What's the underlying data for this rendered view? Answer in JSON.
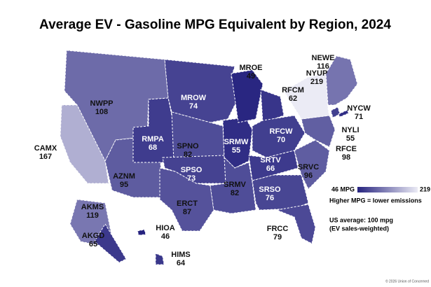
{
  "title": "Average EV - Gasoline MPG Equivalent by Region, 2024",
  "regions": [
    {
      "name": "NWPP",
      "value": 108
    },
    {
      "name": "CAMX",
      "value": 167
    },
    {
      "name": "AZNM",
      "value": 95
    },
    {
      "name": "RMPA",
      "value": 68
    },
    {
      "name": "MROW",
      "value": 74
    },
    {
      "name": "SPNO",
      "value": 82
    },
    {
      "name": "SPSO",
      "value": 73
    },
    {
      "name": "ERCT",
      "value": 87
    },
    {
      "name": "SRMW",
      "value": 55
    },
    {
      "name": "SRMV",
      "value": 82
    },
    {
      "name": "MROE",
      "value": 49
    },
    {
      "name": "RFCM",
      "value": 62
    },
    {
      "name": "RFCW",
      "value": 70
    },
    {
      "name": "SRTV",
      "value": 66
    },
    {
      "name": "SRSO",
      "value": 76
    },
    {
      "name": "FRCC",
      "value": 79
    },
    {
      "name": "SRVC",
      "value": 96
    },
    {
      "name": "RFCE",
      "value": 98
    },
    {
      "name": "NYUP",
      "value": 219
    },
    {
      "name": "NEWE",
      "value": 116
    },
    {
      "name": "NYCW",
      "value": 71
    },
    {
      "name": "NYLI",
      "value": 55
    },
    {
      "name": "AKMS",
      "value": 119
    },
    {
      "name": "AKGD",
      "value": 65
    },
    {
      "name": "HIOA",
      "value": 46
    },
    {
      "name": "HIMS",
      "value": 64
    }
  ],
  "legend": {
    "min": {
      "value": 46,
      "label": "46 MPG"
    },
    "max": 219,
    "min_color": "#26237f",
    "max_color": "#ebebf5",
    "caption": "Higher MPG = lower emissions"
  },
  "note": [
    "US average: 100 mpg",
    "(EV sales-weighted)"
  ],
  "credit": "© 2026 Union of Concerned"
}
